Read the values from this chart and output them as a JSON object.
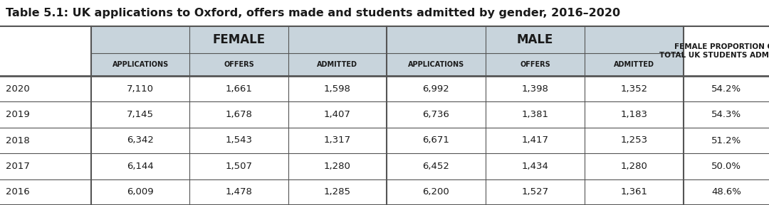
{
  "title": "Table 5.1: UK applications to Oxford, offers made and students admitted by gender, 2016–2020",
  "col_header_bg": "#c8d4dc",
  "col_header_female": "FEMALE",
  "col_header_male": "MALE",
  "sub_headers_female": [
    "APPLICATIONS",
    "OFFERS",
    "ADMITTED"
  ],
  "sub_headers_male": [
    "APPLICATIONS",
    "OFFERS",
    "ADMITTED"
  ],
  "last_header_line1": "FEMALE PROPORTION OF",
  "last_header_line2": "TOTAL UK STUDENTS ADMITTED",
  "years": [
    "2020",
    "2019",
    "2018",
    "2017",
    "2016"
  ],
  "female_applications": [
    "7,110",
    "7,145",
    "6,342",
    "6,144",
    "6,009"
  ],
  "female_offers": [
    "1,661",
    "1,678",
    "1,543",
    "1,507",
    "1,478"
  ],
  "female_admitted": [
    "1,598",
    "1,407",
    "1,317",
    "1,280",
    "1,285"
  ],
  "male_applications": [
    "6,992",
    "6,736",
    "6,671",
    "6,452",
    "6,200"
  ],
  "male_offers": [
    "1,398",
    "1,381",
    "1,417",
    "1,434",
    "1,527"
  ],
  "male_admitted": [
    "1,352",
    "1,183",
    "1,253",
    "1,280",
    "1,361"
  ],
  "female_proportion": [
    "54.2%",
    "54.3%",
    "51.2%",
    "50.0%",
    "48.6%"
  ],
  "bg_white": "#ffffff"
}
